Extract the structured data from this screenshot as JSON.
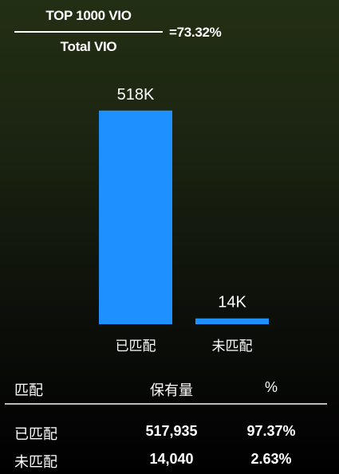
{
  "formula": {
    "numerator": "TOP 1000 VIO",
    "denominator": "Total VIO",
    "result": "=73.32%"
  },
  "chart_data": {
    "type": "bar",
    "categories": [
      "已匹配",
      "未匹配"
    ],
    "values": [
      517935,
      14040
    ],
    "data_labels": [
      "518K",
      "14K"
    ],
    "ylim": [
      0,
      560000
    ],
    "grid": false,
    "bar_color": "#1e90ff"
  },
  "table": {
    "headers": [
      "匹配",
      "保有量",
      "%"
    ],
    "rows": [
      {
        "label": "已匹配",
        "count": "517,935",
        "pct": "97.37%"
      },
      {
        "label": "未匹配",
        "count": "14,040",
        "pct": "2.63%"
      }
    ]
  }
}
